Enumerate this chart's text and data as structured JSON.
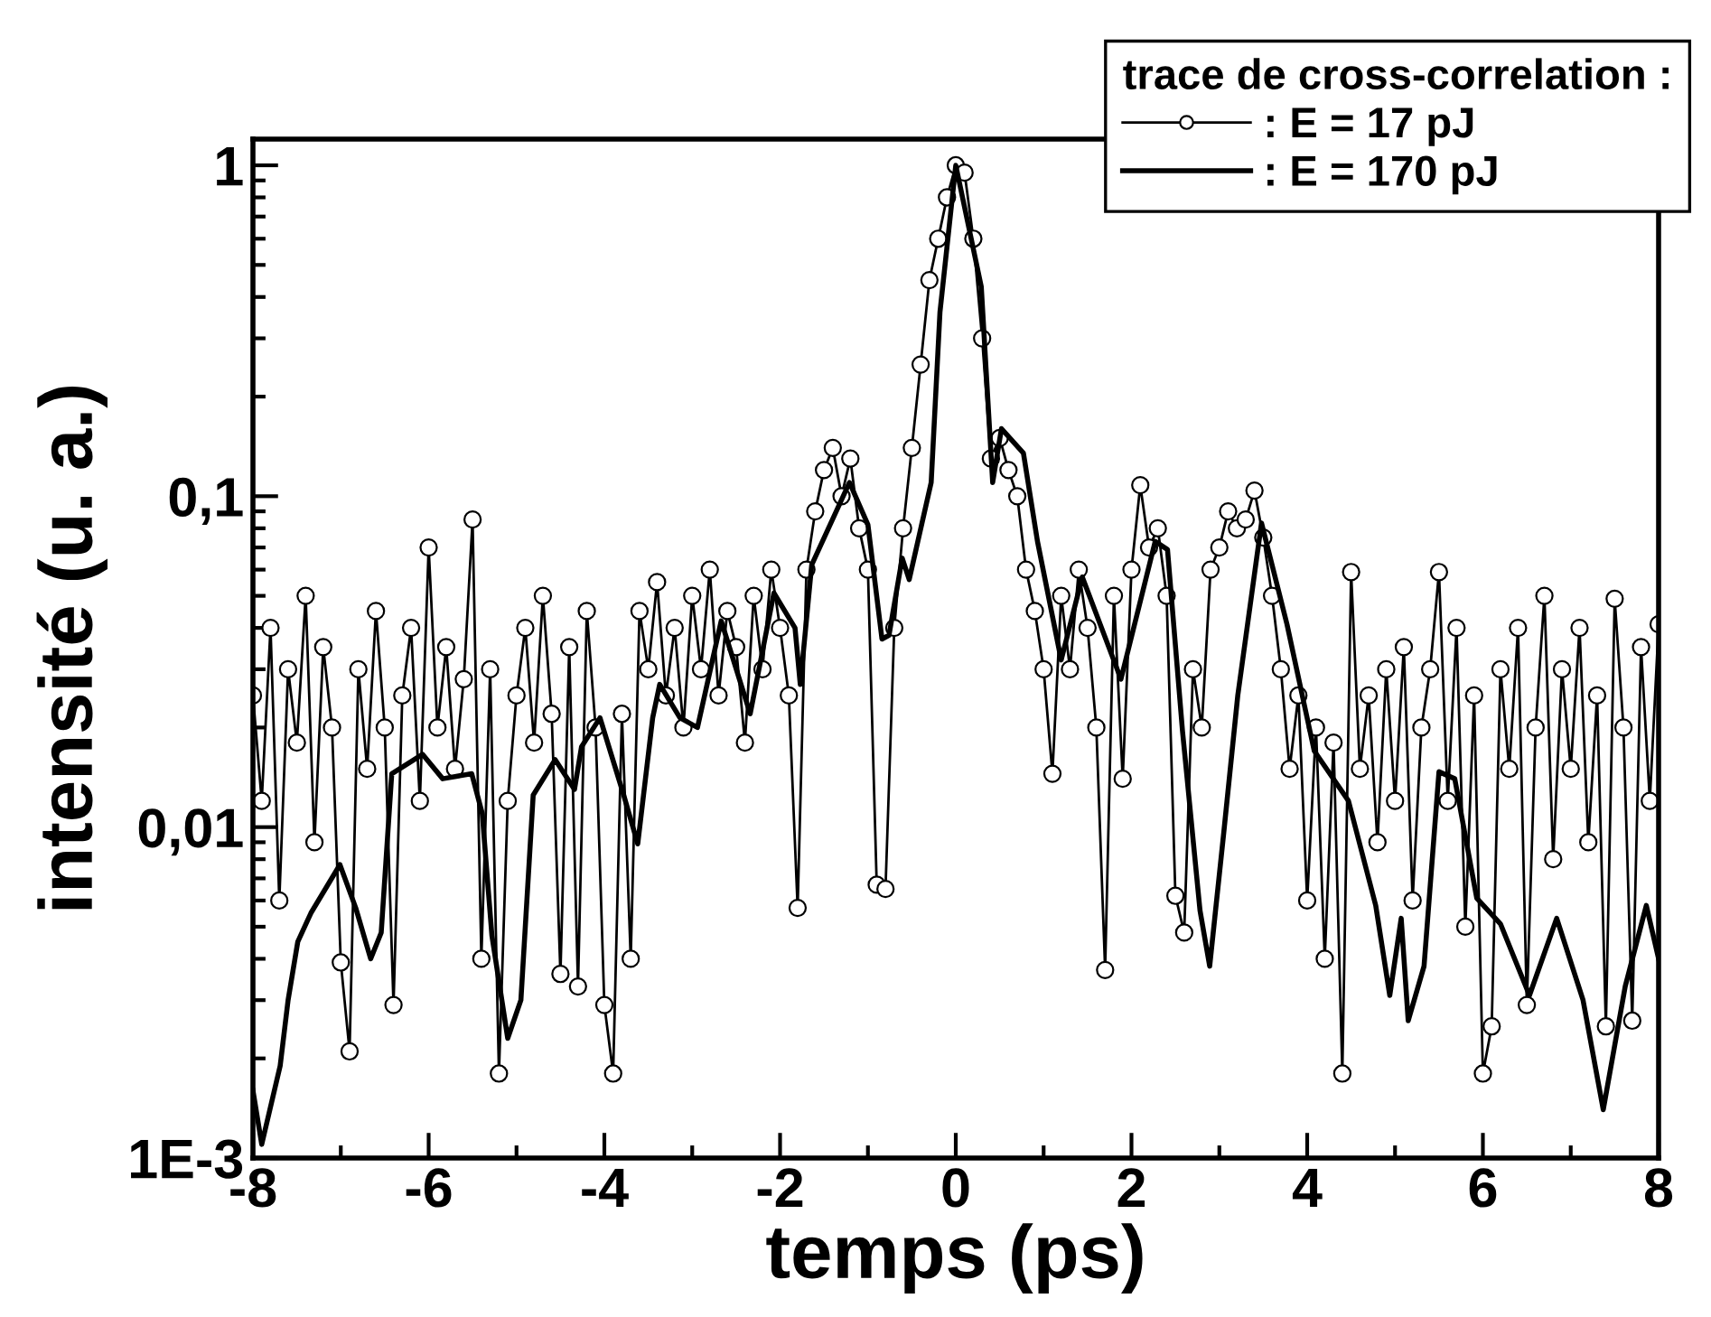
{
  "chart_data": {
    "type": "line",
    "xlabel": "temps (ps)",
    "ylabel": "intensité (u. a.)",
    "legend_title": "trace de cross-correlation :",
    "legend": "top right",
    "log": "y",
    "grid": false,
    "xlim": [
      -8,
      8
    ],
    "xticks": [
      -8,
      -6,
      -4,
      -2,
      0,
      2,
      4,
      6,
      8
    ],
    "ylim": [
      0.001,
      1.2
    ],
    "yticks": [
      {
        "value": 0.001,
        "label": "1E-3"
      },
      {
        "value": 0.01,
        "label": "0,01"
      },
      {
        "value": 0.1,
        "label": "0,1"
      },
      1
    ],
    "series": [
      {
        "name": ": E = 17 pJ",
        "color": "#000000",
        "marker": "circle",
        "line_style": "solid",
        "x": [
          -8.0,
          -7.9,
          -7.8,
          -7.7,
          -7.6,
          -7.5,
          -7.4,
          -7.3,
          -7.2,
          -7.1,
          -7.0,
          -6.9,
          -6.8,
          -6.7,
          -6.6,
          -6.5,
          -6.4,
          -6.3,
          -6.2,
          -6.1,
          -6.0,
          -5.9,
          -5.8,
          -5.7,
          -5.6,
          -5.5,
          -5.4,
          -5.3,
          -5.2,
          -5.1,
          -5.0,
          -4.9,
          -4.8,
          -4.7,
          -4.6,
          -4.5,
          -4.4,
          -4.3,
          -4.2,
          -4.1,
          -4.0,
          -3.9,
          -3.8,
          -3.7,
          -3.6,
          -3.5,
          -3.4,
          -3.3,
          -3.2,
          -3.1,
          -3.0,
          -2.9,
          -2.8,
          -2.7,
          -2.6,
          -2.5,
          -2.4,
          -2.3,
          -2.2,
          -2.1,
          -2.0,
          -1.9,
          -1.8,
          -1.7,
          -1.6,
          -1.5,
          -1.4,
          -1.3,
          -1.2,
          -1.1,
          -1.0,
          -0.9,
          -0.8,
          -0.7,
          -0.6,
          -0.5,
          -0.4,
          -0.3,
          -0.2,
          -0.1,
          0.0,
          0.1,
          0.2,
          0.3,
          0.4,
          0.5,
          0.6,
          0.7,
          0.8,
          0.9,
          1.0,
          1.1,
          1.2,
          1.3,
          1.4,
          1.5,
          1.6,
          1.7,
          1.8,
          1.9,
          2.0,
          2.1,
          2.2,
          2.3,
          2.4,
          2.5,
          2.6,
          2.7,
          2.8,
          2.9,
          3.0,
          3.1,
          3.2,
          3.3,
          3.4,
          3.5,
          3.6,
          3.7,
          3.8,
          3.9,
          4.0,
          4.1,
          4.2,
          4.3,
          4.4,
          4.5,
          4.6,
          4.7,
          4.8,
          4.9,
          5.0,
          5.1,
          5.2,
          5.3,
          5.4,
          5.5,
          5.6,
          5.7,
          5.8,
          5.9,
          6.0,
          6.1,
          6.2,
          6.3,
          6.4,
          6.5,
          6.6,
          6.7,
          6.8,
          6.9,
          7.0,
          7.1,
          7.2,
          7.3,
          7.4,
          7.5,
          7.6,
          7.7,
          7.8,
          7.9,
          8.0
        ],
        "values": [
          0.025,
          0.012,
          0.04,
          0.006,
          0.03,
          0.018,
          0.05,
          0.009,
          0.035,
          0.02,
          0.0039,
          0.0021,
          0.03,
          0.015,
          0.045,
          0.02,
          0.0029,
          0.025,
          0.04,
          0.012,
          0.07,
          0.02,
          0.035,
          0.015,
          0.028,
          0.085,
          0.004,
          0.03,
          0.0018,
          0.012,
          0.025,
          0.04,
          0.018,
          0.05,
          0.022,
          0.0036,
          0.035,
          0.0033,
          0.045,
          0.02,
          0.0029,
          0.0018,
          0.022,
          0.004,
          0.045,
          0.03,
          0.055,
          0.025,
          0.04,
          0.02,
          0.05,
          0.03,
          0.06,
          0.025,
          0.045,
          0.035,
          0.018,
          0.05,
          0.03,
          0.06,
          0.04,
          0.025,
          0.0057,
          0.06,
          0.09,
          0.12,
          0.14,
          0.1,
          0.13,
          0.08,
          0.06,
          0.0067,
          0.0065,
          0.04,
          0.08,
          0.14,
          0.25,
          0.45,
          0.6,
          0.8,
          1.0,
          0.95,
          0.6,
          0.3,
          0.13,
          0.15,
          0.12,
          0.1,
          0.06,
          0.045,
          0.03,
          0.0145,
          0.05,
          0.03,
          0.06,
          0.04,
          0.02,
          0.0037,
          0.05,
          0.014,
          0.06,
          0.108,
          0.07,
          0.08,
          0.05,
          0.0062,
          0.0048,
          0.03,
          0.02,
          0.06,
          0.07,
          0.09,
          0.08,
          0.085,
          0.104,
          0.075,
          0.05,
          0.03,
          0.015,
          0.025,
          0.006,
          0.02,
          0.004,
          0.018,
          0.0018,
          0.059,
          0.015,
          0.025,
          0.009,
          0.03,
          0.012,
          0.035,
          0.006,
          0.02,
          0.03,
          0.059,
          0.012,
          0.04,
          0.005,
          0.025,
          0.0018,
          0.0025,
          0.03,
          0.015,
          0.04,
          0.0029,
          0.02,
          0.05,
          0.008,
          0.03,
          0.015,
          0.04,
          0.009,
          0.025,
          0.0025,
          0.049,
          0.02,
          0.0026,
          0.035,
          0.012,
          0.041
        ]
      },
      {
        "name": ": E = 170 pJ",
        "color": "#000000",
        "marker": "none",
        "line_style": "solid",
        "x": [
          -8.0,
          -7.9,
          -7.69,
          -7.6,
          -7.49,
          -7.34,
          -7.01,
          -6.83,
          -6.66,
          -6.54,
          -6.42,
          -6.07,
          -5.84,
          -5.51,
          -5.39,
          -5.28,
          -5.1,
          -4.95,
          -4.81,
          -4.56,
          -4.34,
          -4.26,
          -4.05,
          -3.78,
          -3.62,
          -3.45,
          -3.37,
          -3.14,
          -2.94,
          -2.67,
          -2.34,
          -2.07,
          -1.83,
          -1.77,
          -1.64,
          -1.21,
          -1.0,
          -0.84,
          -0.76,
          -0.61,
          -0.53,
          -0.28,
          -0.18,
          0.0,
          0.29,
          0.42,
          0.52,
          0.77,
          0.93,
          1.2,
          1.44,
          1.88,
          2.27,
          2.41,
          2.58,
          2.78,
          2.89,
          3.05,
          3.21,
          3.48,
          3.77,
          4.08,
          4.47,
          4.78,
          4.94,
          5.07,
          5.15,
          5.33,
          5.5,
          5.68,
          5.93,
          6.2,
          6.53,
          6.84,
          7.14,
          7.37,
          7.62,
          7.86,
          8.0
        ],
        "values": [
          0.0016,
          0.0011,
          0.0019,
          0.003,
          0.0045,
          0.0055,
          0.0077,
          0.0057,
          0.004,
          0.0048,
          0.0145,
          0.0166,
          0.014,
          0.0145,
          0.011,
          0.0047,
          0.0023,
          0.003,
          0.0125,
          0.016,
          0.013,
          0.0175,
          0.0214,
          0.0125,
          0.0089,
          0.0214,
          0.027,
          0.0214,
          0.02,
          0.042,
          0.022,
          0.051,
          0.04,
          0.027,
          0.062,
          0.11,
          0.082,
          0.037,
          0.038,
          0.065,
          0.056,
          0.11,
          0.36,
          1.0,
          0.43,
          0.11,
          0.16,
          0.135,
          0.073,
          0.032,
          0.057,
          0.028,
          0.073,
          0.069,
          0.0196,
          0.0056,
          0.0038,
          0.0096,
          0.025,
          0.083,
          0.041,
          0.017,
          0.012,
          0.0058,
          0.0031,
          0.0053,
          0.0026,
          0.0038,
          0.0147,
          0.014,
          0.0061,
          0.0051,
          0.0031,
          0.0053,
          0.003,
          0.0014,
          0.0033,
          0.0058,
          0.004
        ]
      }
    ]
  }
}
